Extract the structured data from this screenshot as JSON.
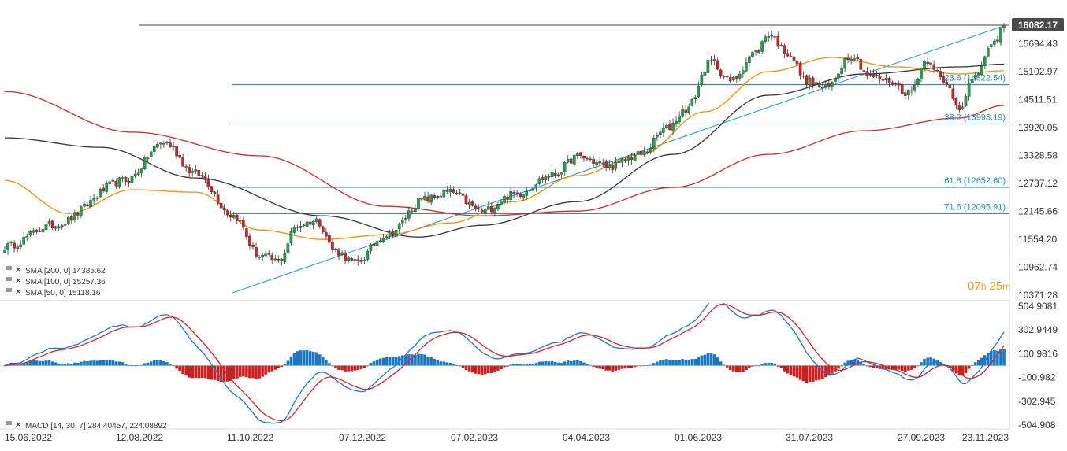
{
  "chart_data": [
    {
      "type": "candlestick",
      "y_axis_ticks": [
        "16082.17",
        "15694.43",
        "15102.97",
        "14511.51",
        "13920.05",
        "13328.58",
        "12737.12",
        "12145.66",
        "11554.20",
        "10962.74",
        "10371.28"
      ],
      "ylim": [
        10371.28,
        16082.17
      ],
      "last_price": "16082.17",
      "timer": {
        "hours": "07",
        "h_unit": "h",
        "minutes": "25",
        "m_unit": "m"
      },
      "x_axis_ticks": [
        "15.06.2022",
        "12.08.2022",
        "11.10.2022",
        "07.12.2022",
        "07.02.2023",
        "04.04.2023",
        "01.06.2023",
        "31.07.2023",
        "27.09.2023",
        "23.11.2023"
      ],
      "fibonacci_levels": [
        {
          "label": "23.6 (14822.54)",
          "value": 14822.54
        },
        {
          "label": "38.2 (13993.19)",
          "value": 13993.19
        },
        {
          "label": "61.8 (12652.60)",
          "value": 12652.6
        },
        {
          "label": "71.6 (12095.91)",
          "value": 12095.91
        }
      ],
      "horizontal_line": 16082.17,
      "trendline": {
        "from": {
          "date": "11.10.2022",
          "value": 10420
        },
        "to": {
          "date": "23.11.2023",
          "value": 16082.17
        }
      },
      "legend": [
        {
          "text": "SMA [200,  0]  14385.62",
          "color": "#d62728"
        },
        {
          "text": "SMA [100,  0]  15257.36",
          "color": "#333333"
        },
        {
          "text": "SMA [50,  0]  15118.16",
          "color": "#ff8c00"
        }
      ],
      "anchors": {
        "close": [
          [
            0,
            11400
          ],
          [
            15,
            11850
          ],
          [
            38,
            12800
          ],
          [
            50,
            13600
          ],
          [
            60,
            12950
          ],
          [
            72,
            12050
          ],
          [
            80,
            11200
          ],
          [
            86,
            11100
          ],
          [
            92,
            11850
          ],
          [
            98,
            11950
          ],
          [
            104,
            11300
          ],
          [
            110,
            11050
          ],
          [
            120,
            11650
          ],
          [
            132,
            12400
          ],
          [
            140,
            12550
          ],
          [
            150,
            12150
          ],
          [
            160,
            12500
          ],
          [
            172,
            12900
          ],
          [
            180,
            13300
          ],
          [
            190,
            13100
          ],
          [
            200,
            13350
          ],
          [
            208,
            13900
          ],
          [
            214,
            14300
          ],
          [
            222,
            15300
          ],
          [
            228,
            14900
          ],
          [
            236,
            15500
          ],
          [
            240,
            15900
          ],
          [
            246,
            15500
          ],
          [
            252,
            14900
          ],
          [
            258,
            14750
          ],
          [
            266,
            15450
          ],
          [
            272,
            15000
          ],
          [
            278,
            14900
          ],
          [
            284,
            14650
          ],
          [
            290,
            15350
          ],
          [
            296,
            14800
          ],
          [
            300,
            14350
          ],
          [
            304,
            14900
          ],
          [
            310,
            15600
          ],
          [
            314,
            16050
          ]
        ],
        "sma200": [
          [
            0,
            14680
          ],
          [
            40,
            13820
          ],
          [
            80,
            13320
          ],
          [
            120,
            12250
          ],
          [
            150,
            12050
          ],
          [
            180,
            12150
          ],
          [
            210,
            12650
          ],
          [
            240,
            13350
          ],
          [
            270,
            13850
          ],
          [
            300,
            14120
          ],
          [
            314,
            14385.62
          ]
        ],
        "sma100": [
          [
            0,
            13700
          ],
          [
            30,
            13500
          ],
          [
            60,
            12850
          ],
          [
            100,
            12050
          ],
          [
            130,
            11600
          ],
          [
            150,
            11850
          ],
          [
            180,
            12350
          ],
          [
            210,
            13350
          ],
          [
            240,
            14600
          ],
          [
            270,
            15050
          ],
          [
            300,
            15200
          ],
          [
            314,
            15257.36
          ]
        ],
        "sma50": [
          [
            0,
            12800
          ],
          [
            20,
            12100
          ],
          [
            40,
            12600
          ],
          [
            60,
            12550
          ],
          [
            80,
            11750
          ],
          [
            100,
            11550
          ],
          [
            120,
            11650
          ],
          [
            140,
            11900
          ],
          [
            160,
            12350
          ],
          [
            180,
            12900
          ],
          [
            200,
            13350
          ],
          [
            220,
            14250
          ],
          [
            240,
            15100
          ],
          [
            260,
            15400
          ],
          [
            280,
            15200
          ],
          [
            300,
            15050
          ],
          [
            314,
            15118.16
          ]
        ]
      }
    },
    {
      "type": "macd",
      "y_axis_ticks": [
        "504.9081",
        "302.9449",
        "100.9816",
        "-100.982",
        "-302.945",
        "-504.908"
      ],
      "ylim": [
        -504.908,
        504.9081
      ],
      "legend": "MACD [14,  30,  7]  284.40457,   224.08892",
      "macd_value": 284.40457,
      "signal_value": 224.08892,
      "colors": {
        "macd": "#1f77d0",
        "signal": "#d62728",
        "hist_pos": "#1a78c2",
        "hist_neg": "#cc1f1f"
      }
    }
  ]
}
